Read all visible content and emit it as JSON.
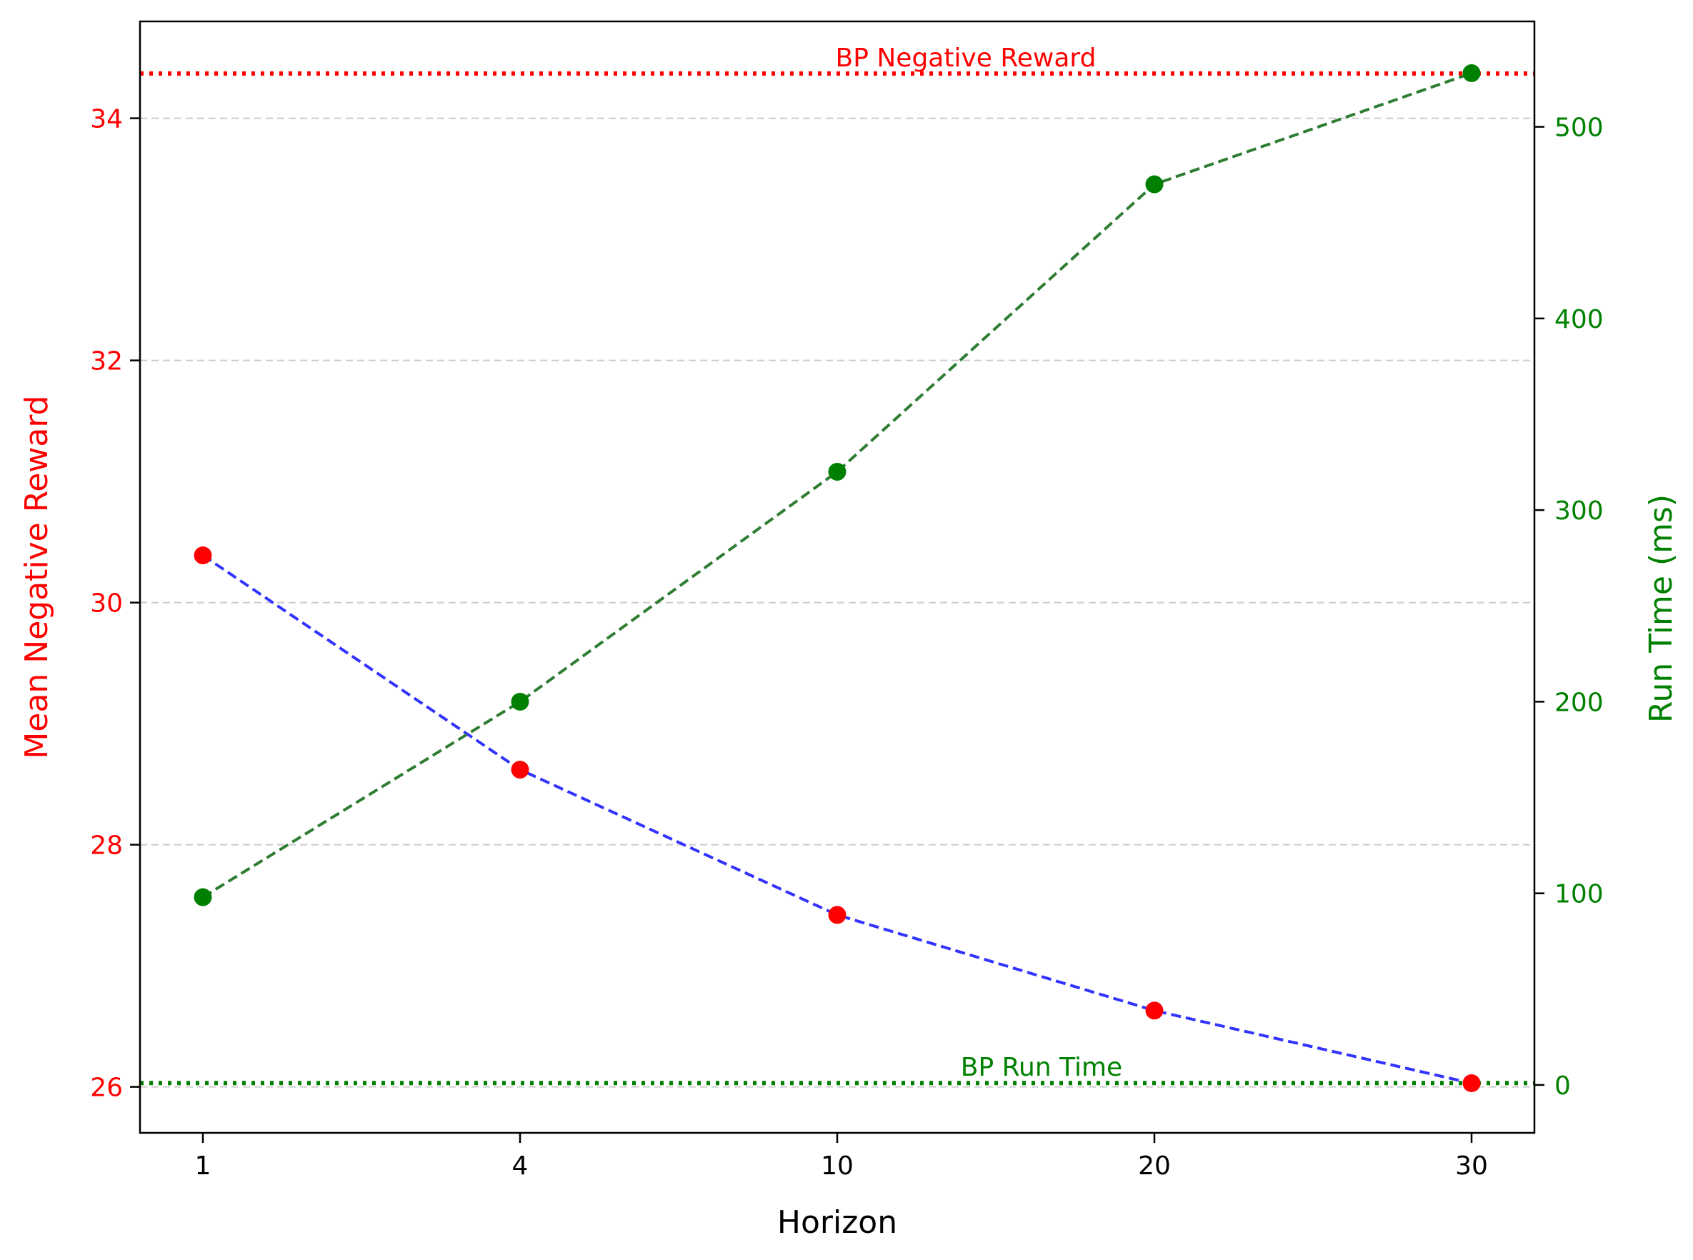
{
  "chart_data": {
    "type": "line",
    "xlabel": "Horizon",
    "ylabel_left": "Mean Negative Reward",
    "ylabel_right": "Run Time (ms)",
    "categories": [
      "1",
      "4",
      "10",
      "20",
      "30"
    ],
    "y_left": {
      "ylim": [
        25.62,
        34.8
      ],
      "ticks": [
        26,
        28,
        30,
        32,
        34
      ]
    },
    "y_right": {
      "ylim": [
        -25,
        555
      ],
      "ticks": [
        0,
        100,
        200,
        300,
        400,
        500
      ]
    },
    "grid": "horizontal dashed (left axis ticks)",
    "series": [
      {
        "axis": "left",
        "values": [
          30.39,
          28.62,
          27.42,
          26.63,
          26.03
        ],
        "line_color": "#3333ff",
        "marker_color": "#ff0000"
      },
      {
        "axis": "right",
        "values": [
          98,
          200,
          320,
          470,
          528
        ],
        "line_color": "#2e7d32",
        "marker_color": "#008000"
      }
    ],
    "reference_lines": [
      {
        "axis": "left",
        "value": 34.37,
        "label": "BP Negative Reward",
        "color": "#ff0000"
      },
      {
        "axis": "right",
        "value": 1,
        "label": "BP Run Time",
        "color": "#008000"
      }
    ],
    "colors": {
      "left_axis": "#ff0000",
      "right_axis": "#008000",
      "grid": "#cccccc"
    }
  }
}
